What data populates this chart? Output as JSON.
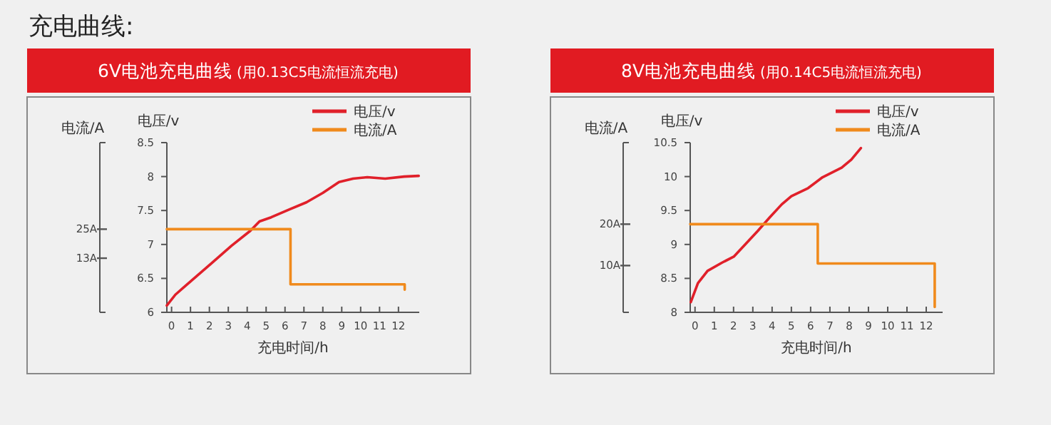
{
  "chart_data": [
    {
      "type": "line",
      "title": "6V电池充电曲线",
      "subtitle": "(用0.13C5电流恒流充电)",
      "annotations": [
        "充电曲线:"
      ],
      "xlabel": "充电时间/h",
      "ylabel": "电压/v",
      "y2label": "电流/A",
      "legend": "top right",
      "xlim": [
        -0.25,
        13.1
      ],
      "xticks": [
        0,
        1,
        2,
        3,
        4,
        5,
        6,
        7,
        8,
        9,
        10,
        11,
        12
      ],
      "ylim": [
        6,
        8.5
      ],
      "yticks": [
        6,
        6.5,
        7,
        7.5,
        8,
        8.5
      ],
      "y2lim": [
        -9.4,
        60.8
      ],
      "y2ticks": [
        {
          "value": 25,
          "label": "25A"
        },
        {
          "value": 13,
          "label": "13A"
        }
      ],
      "series": [
        {
          "name": "电压/v",
          "color": "#e0202a",
          "x": [
            -0.25,
            0.2,
            1.19,
            2.18,
            3.17,
            4.16,
            4.65,
            5.27,
            6.26,
            7.13,
            8.0,
            8.86,
            9.6,
            10.35,
            11.3,
            12.3,
            13.07
          ],
          "values": [
            6.1,
            6.26,
            6.5,
            6.74,
            6.98,
            7.2,
            7.34,
            7.4,
            7.52,
            7.62,
            7.76,
            7.92,
            7.97,
            7.99,
            7.97,
            8.0,
            8.01
          ]
        },
        {
          "name": "电流/A",
          "color": "#f08a1c",
          "axis": "y2",
          "x": [
            -0.25,
            6.29,
            6.29,
            12.33,
            12.33
          ],
          "values": [
            25,
            25,
            2.2,
            2.2,
            0
          ]
        }
      ]
    },
    {
      "type": "line",
      "title": "8V电池充电曲线",
      "subtitle": "(用0.14C5电流恒流充电)",
      "xlabel": "充电时间/h",
      "ylabel": "电压/v",
      "y2label": "电流/A",
      "legend": "top right",
      "xlim": [
        -0.25,
        12.85
      ],
      "xticks": [
        0,
        1,
        2,
        3,
        4,
        5,
        6,
        7,
        8,
        9,
        10,
        11,
        12
      ],
      "ylim": [
        8,
        10.5
      ],
      "yticks": [
        8,
        8.5,
        9,
        9.5,
        10,
        10.5
      ],
      "y2lim": [
        -1.3,
        39.7
      ],
      "y2ticks": [
        {
          "value": 20,
          "label": "20A"
        },
        {
          "value": 10,
          "label": "10A"
        }
      ],
      "series": [
        {
          "name": "电压/v",
          "color": "#e0202a",
          "x": [
            -0.22,
            0.15,
            0.65,
            1.39,
            2.01,
            2.64,
            3.26,
            3.88,
            4.5,
            5.0,
            5.87,
            6.62,
            7.61,
            8.11,
            8.61
          ],
          "values": [
            8.15,
            8.43,
            8.61,
            8.73,
            8.82,
            9.01,
            9.2,
            9.4,
            9.59,
            9.71,
            9.83,
            9.99,
            10.13,
            10.25,
            10.42
          ]
        },
        {
          "name": "电流/A",
          "color": "#f08a1c",
          "axis": "y2",
          "x": [
            -0.25,
            6.37,
            6.37,
            12.44,
            12.44
          ],
          "values": [
            20,
            20,
            10.5,
            10.5,
            0
          ]
        }
      ]
    }
  ]
}
